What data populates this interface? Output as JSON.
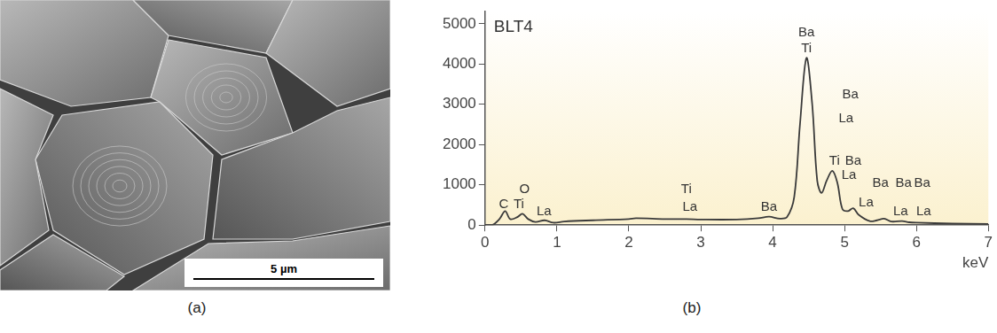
{
  "image": {
    "label": "(a)",
    "scale_bar": "5 µm"
  },
  "chart_data": {
    "type": "line",
    "panel_label": "(b)",
    "title": "BLT4",
    "x_label": "keV",
    "x": [
      0,
      0.1,
      0.2,
      0.28,
      0.35,
      0.45,
      0.52,
      0.6,
      0.7,
      0.83,
      0.95,
      1.1,
      1.5,
      2.0,
      2.1,
      2.5,
      2.8,
      3.0,
      3.5,
      3.8,
      3.95,
      4.1,
      4.2,
      4.3,
      4.38,
      4.47,
      4.55,
      4.62,
      4.68,
      4.75,
      4.83,
      4.9,
      4.97,
      5.05,
      5.12,
      5.2,
      5.35,
      5.45,
      5.55,
      5.65,
      5.8,
      5.9,
      6.0,
      6.5,
      7.0
    ],
    "values": [
      0,
      0,
      150,
      350,
      150,
      200,
      280,
      150,
      80,
      120,
      60,
      90,
      120,
      150,
      170,
      150,
      150,
      140,
      140,
      170,
      210,
      160,
      200,
      700,
      2500,
      4150,
      3000,
      1100,
      800,
      1100,
      1350,
      1050,
      400,
      350,
      420,
      250,
      100,
      120,
      160,
      90,
      100,
      70,
      60,
      40,
      30
    ],
    "color": "#3a3a3a",
    "xlim": [
      0,
      7
    ],
    "xticks": [
      0,
      1,
      2,
      3,
      4,
      5,
      6,
      7
    ],
    "ylim": [
      0,
      5300
    ],
    "yticks": [
      0,
      1000,
      2000,
      3000,
      4000,
      5000
    ],
    "grid": false,
    "legend": false,
    "annotations": [
      {
        "text": "C",
        "x": 0.26,
        "y": 520
      },
      {
        "text": "Ti",
        "x": 0.47,
        "y": 520
      },
      {
        "text": "O",
        "x": 0.55,
        "y": 880
      },
      {
        "text": "La",
        "x": 0.82,
        "y": 330
      },
      {
        "text": "Ti",
        "x": 2.8,
        "y": 880
      },
      {
        "text": "La",
        "x": 2.85,
        "y": 450
      },
      {
        "text": "Ba",
        "x": 3.95,
        "y": 450
      },
      {
        "text": "Ba",
        "x": 4.47,
        "y": 4780
      },
      {
        "text": "Ti",
        "x": 4.47,
        "y": 4380
      },
      {
        "text": "Ba",
        "x": 5.08,
        "y": 3250
      },
      {
        "text": "La",
        "x": 5.02,
        "y": 2650
      },
      {
        "text": "Ti",
        "x": 4.86,
        "y": 1600
      },
      {
        "text": "Ba",
        "x": 5.12,
        "y": 1600
      },
      {
        "text": "La",
        "x": 5.06,
        "y": 1250
      },
      {
        "text": "Ba",
        "x": 5.5,
        "y": 1050
      },
      {
        "text": "Ba",
        "x": 5.82,
        "y": 1050
      },
      {
        "text": "Ba",
        "x": 6.08,
        "y": 1050
      },
      {
        "text": "La",
        "x": 5.3,
        "y": 550
      },
      {
        "text": "La",
        "x": 5.78,
        "y": 330
      },
      {
        "text": "La",
        "x": 6.1,
        "y": 330
      }
    ]
  }
}
